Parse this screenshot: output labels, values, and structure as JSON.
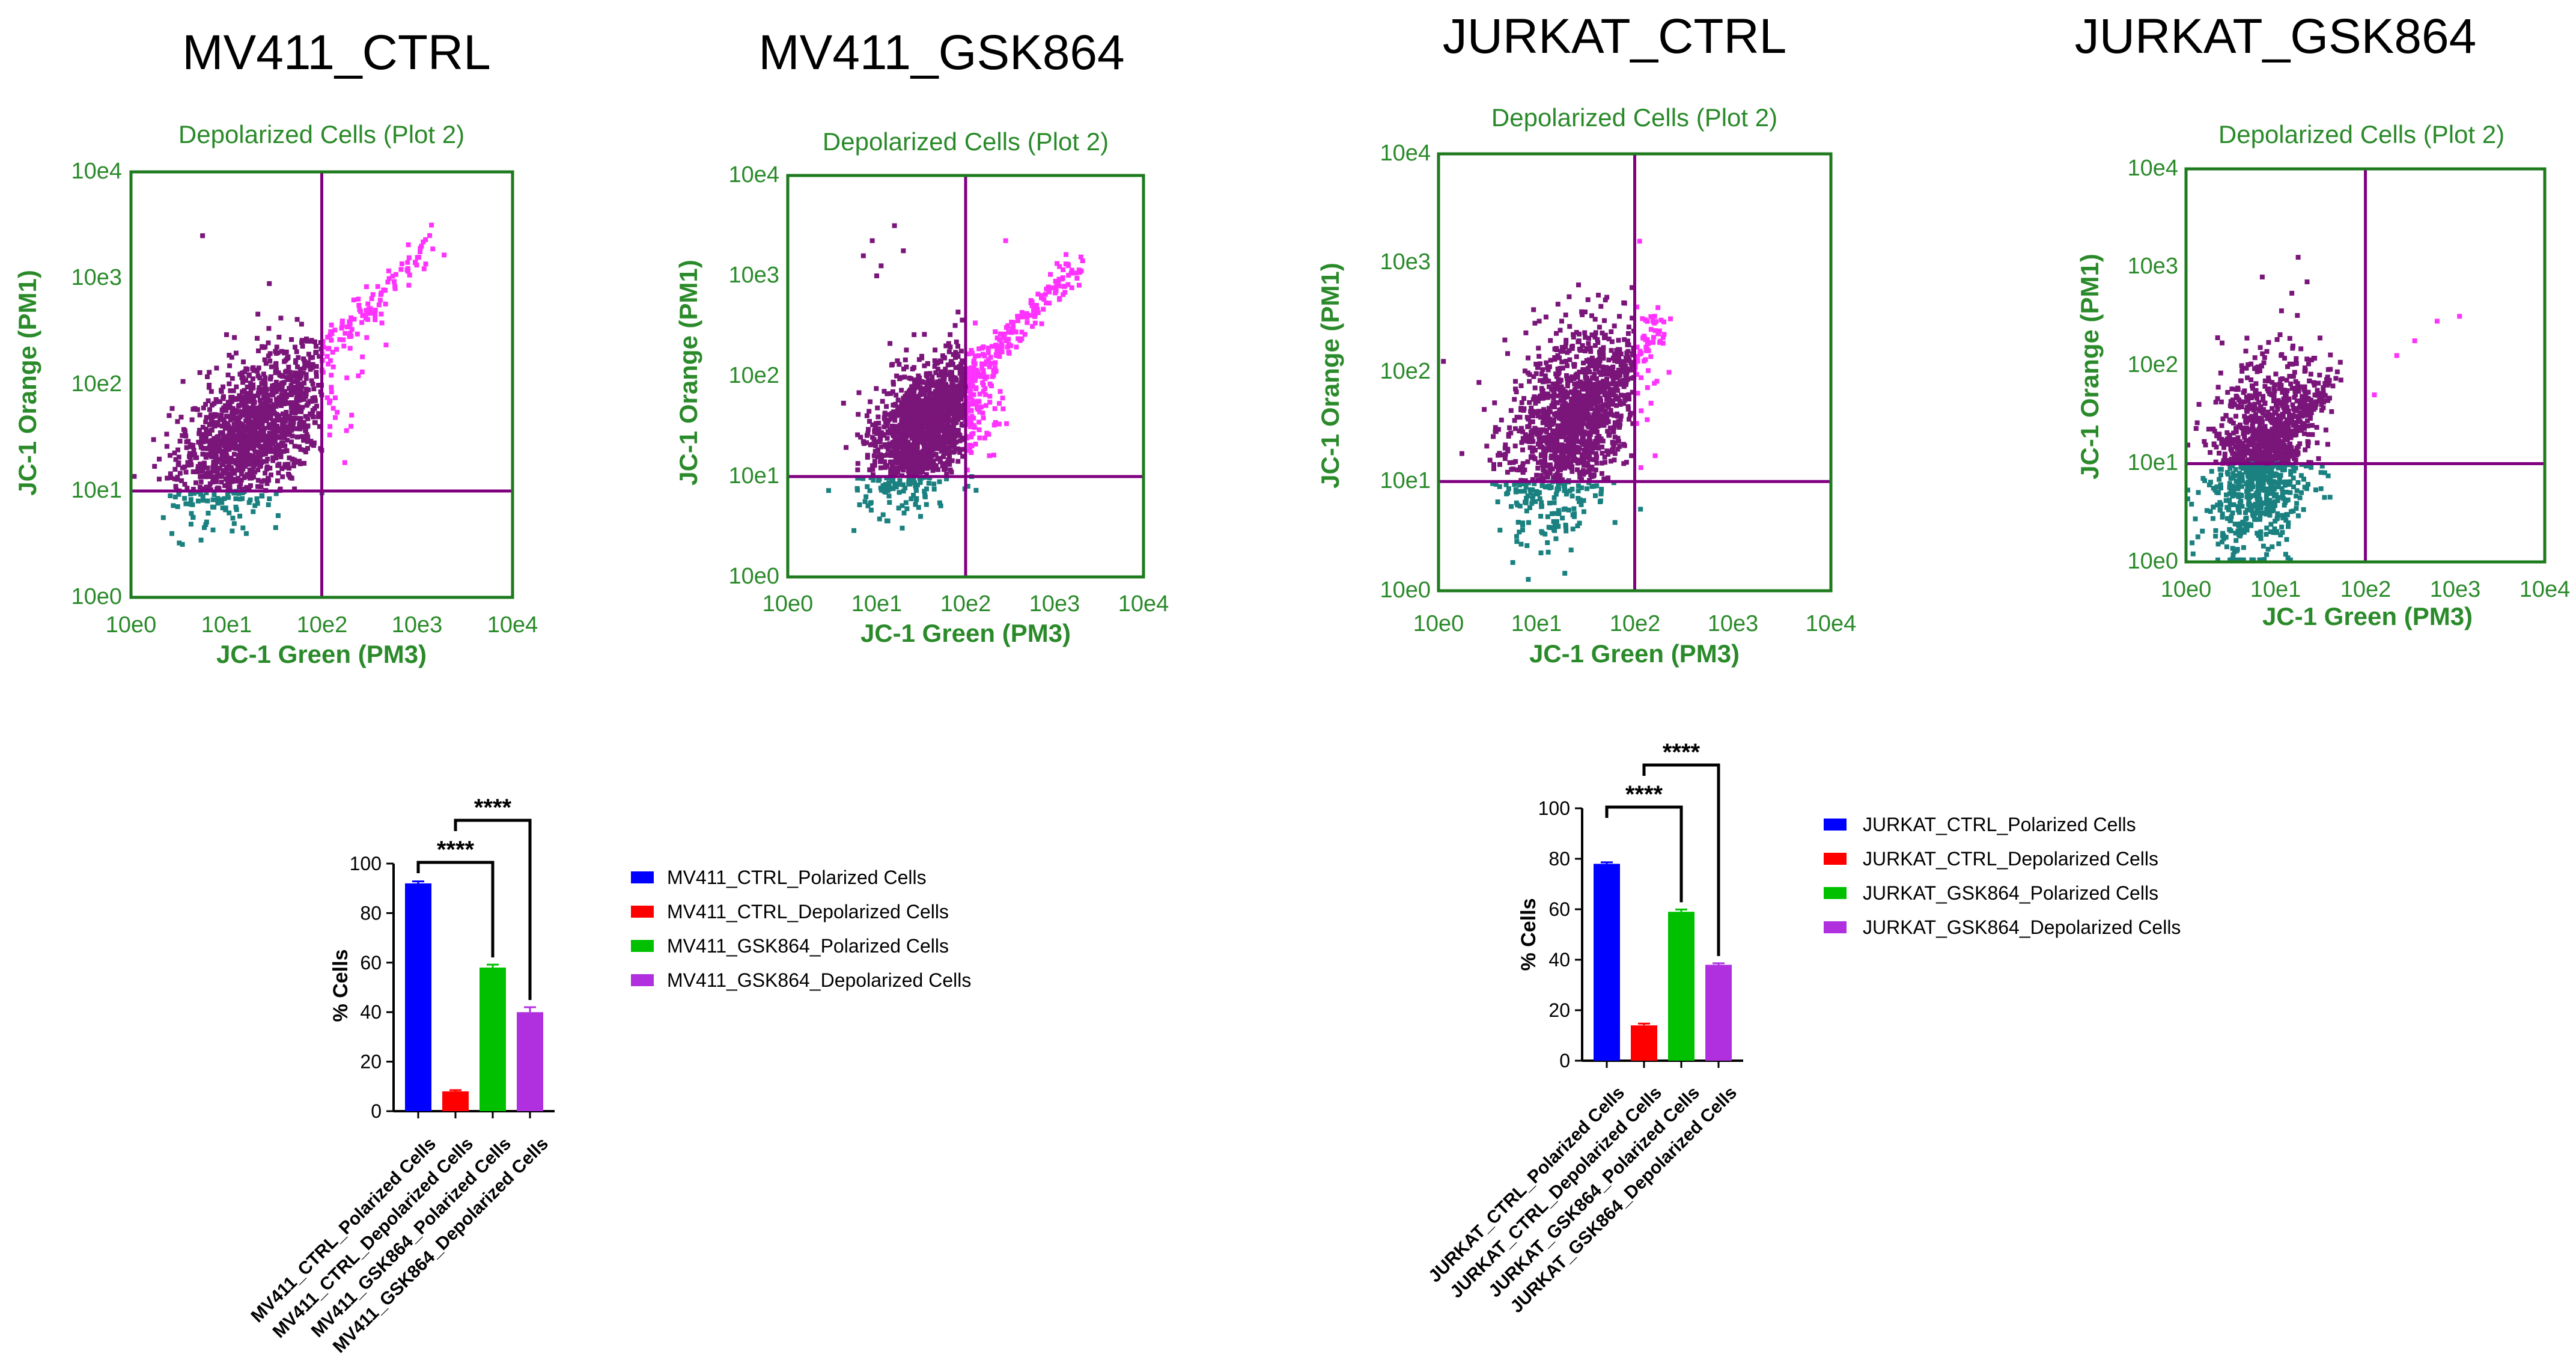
{
  "colors": {
    "plot_frame": "#1d7a1d",
    "plot_text": "#2a8a2a",
    "gate_line": "#800080",
    "healthy_dots": "#7a157a",
    "depolarized_dots": "#ff33ff",
    "low_dots": "#1a8080",
    "bar_blue": "#0000ff",
    "bar_red": "#ff0000",
    "bar_green": "#00c000",
    "bar_purple": "#b030e0"
  },
  "scatter_plots": [
    {
      "panel_title": "MV411_CTRL",
      "plot_title": "Depolarized Cells (Plot 2)",
      "xlabel": "JC-1 Green (PM3)",
      "ylabel": "JC-1 Orange (PM1)",
      "x_ticks": [
        "10e0",
        "10e1",
        "10e2",
        "10e3",
        "10e4"
      ],
      "y_ticks": [
        "10e0",
        "10e1",
        "10e2",
        "10e3",
        "10e4"
      ],
      "gate": {
        "x_log": 2.0,
        "y_log": 1.0
      },
      "population": {
        "center_x_log": 1.25,
        "center_y_log": 1.55,
        "spread_x": 0.38,
        "spread_y": 0.32,
        "diag_tail": 3.1,
        "count": 1500,
        "seed": 11
      },
      "outliers": [
        [
          0.75,
          3.4
        ],
        [
          1.45,
          2.95
        ],
        [
          3.15,
          3.5
        ],
        [
          2.6,
          2.75
        ]
      ]
    },
    {
      "panel_title": "MV411_GSK864",
      "plot_title": "Depolarized Cells (Plot 2)",
      "xlabel": "JC-1 Green (PM3)",
      "ylabel": "JC-1 Orange (PM1)",
      "x_ticks": [
        "10e0",
        "10e1",
        "10e2",
        "10e3",
        "10e4"
      ],
      "y_ticks": [
        "10e0",
        "10e1",
        "10e2",
        "10e3",
        "10e4"
      ],
      "gate": {
        "x_log": 2.0,
        "y_log": 1.0
      },
      "population": {
        "center_x_log": 1.55,
        "center_y_log": 1.5,
        "spread_x": 0.3,
        "spread_y": 0.3,
        "diag_tail": 3.25,
        "count": 1700,
        "seed": 23
      },
      "outliers": [
        [
          0.95,
          3.35
        ],
        [
          1.05,
          3.1
        ],
        [
          1.2,
          3.5
        ],
        [
          2.45,
          3.35
        ],
        [
          0.85,
          3.2
        ],
        [
          1.0,
          3.0
        ],
        [
          1.3,
          3.25
        ]
      ]
    },
    {
      "panel_title": "JURKAT_CTRL",
      "plot_title": "Depolarized Cells (Plot 2)",
      "xlabel": "JC-1 Green (PM3)",
      "ylabel": "JC-1 Orange (PM1)",
      "x_ticks": [
        "10e0",
        "10e1",
        "10e2",
        "10e3",
        "10e4"
      ],
      "y_ticks": [
        "10e0",
        "10e1",
        "10e2",
        "10e3",
        "10e4"
      ],
      "gate": {
        "x_log": 2.0,
        "y_log": 1.0
      },
      "population": {
        "center_x_log": 1.35,
        "center_y_log": 1.55,
        "spread_x": 0.32,
        "spread_y": 0.42,
        "diag_tail": 2.3,
        "count": 1500,
        "seed": 37
      },
      "outliers": [
        [
          0.05,
          2.1
        ],
        [
          2.05,
          3.2
        ],
        [
          2.35,
          2.0
        ],
        [
          2.2,
          1.9
        ]
      ]
    },
    {
      "panel_title": "JURKAT_GSK864",
      "plot_title": "Depolarized Cells (Plot 2)",
      "xlabel": "JC-1 Green (PM3)",
      "ylabel": "JC-1 Orange (PM1)",
      "x_ticks": [
        "10e0",
        "10e1",
        "10e2",
        "10e3",
        "10e4"
      ],
      "y_ticks": [
        "10e0",
        "10e1",
        "10e2",
        "10e3",
        "10e4"
      ],
      "gate": {
        "x_log": 2.0,
        "y_log": 1.0
      },
      "population": {
        "center_x_log": 0.85,
        "center_y_log": 1.1,
        "spread_x": 0.3,
        "spread_y": 0.45,
        "diag_tail": 1.6,
        "count": 1300,
        "seed": 53
      },
      "outliers": [
        [
          1.25,
          3.1
        ],
        [
          0.85,
          2.9
        ],
        [
          1.35,
          2.85
        ],
        [
          2.8,
          2.45
        ],
        [
          2.55,
          2.25
        ],
        [
          3.05,
          2.5
        ],
        [
          2.35,
          2.1
        ],
        [
          2.1,
          1.7
        ]
      ]
    }
  ],
  "chart_data": [
    {
      "type": "bar",
      "categories": [
        "MV411_CTRL_Polarized Cells",
        "MV411_CTRL_Depolarized Cells",
        "MV411_GSK864_Polarized Cells",
        "MV411_GSK864_Depolarized Cells"
      ],
      "values": [
        92,
        8,
        58,
        40
      ],
      "errors": [
        0.8,
        0.5,
        1.2,
        2.0
      ],
      "colors": [
        "#0000ff",
        "#ff0000",
        "#00c000",
        "#b030e0"
      ],
      "ylabel": "% Cells",
      "ylim": [
        0,
        100
      ],
      "y_ticks": [
        0,
        20,
        40,
        60,
        80,
        100
      ],
      "legend": [
        "MV411_CTRL_Polarized Cells",
        "MV411_CTRL_Depolarized Cells",
        "MV411_GSK864_Polarized Cells",
        "MV411_GSK864_Depolarized Cells"
      ],
      "significance": [
        {
          "from": 0,
          "to": 2,
          "label": "****"
        },
        {
          "from": 1,
          "to": 3,
          "label": "****"
        }
      ]
    },
    {
      "type": "bar",
      "categories": [
        "JURKAT_CTRL_Polarized Cells",
        "JURKAT_CTRL_Depolarized Cells",
        "JURKAT_GSK864_Polarized Cells",
        "JURKAT_GSK864_Depolarized Cells"
      ],
      "values": [
        78,
        14,
        59,
        38
      ],
      "errors": [
        0.6,
        0.7,
        0.9,
        0.6
      ],
      "colors": [
        "#0000ff",
        "#ff0000",
        "#00c000",
        "#b030e0"
      ],
      "ylabel": "% Cells",
      "ylim": [
        0,
        100
      ],
      "y_ticks": [
        0,
        20,
        40,
        60,
        80,
        100
      ],
      "legend": [
        "JURKAT_CTRL_Polarized Cells",
        "JURKAT_CTRL_Depolarized Cells",
        "JURKAT_GSK864_Polarized Cells",
        "JURKAT_GSK864_Depolarized Cells"
      ],
      "significance": [
        {
          "from": 0,
          "to": 2,
          "label": "****"
        },
        {
          "from": 1,
          "to": 3,
          "label": "****"
        }
      ]
    }
  ]
}
